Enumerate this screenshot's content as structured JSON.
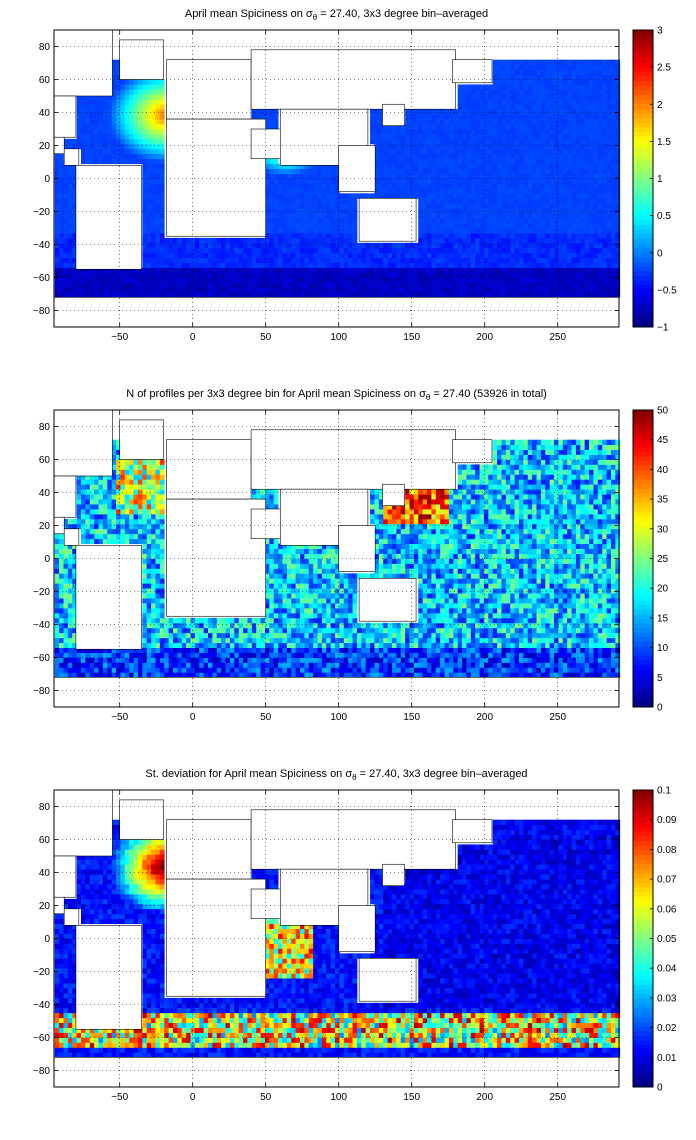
{
  "chart_data": [
    {
      "type": "heatmap",
      "title": "April mean Spiciness on σθ = 27.40, 3x3 degree bin–averaged",
      "title_parts": {
        "before": "April mean Spiciness on σ",
        "sub": "θ",
        "after": " = 27.40, 3x3 degree bin–averaged"
      },
      "xlim": [
        -95,
        292
      ],
      "ylim": [
        -90,
        90
      ],
      "xticks": [
        -50,
        0,
        50,
        100,
        150,
        200,
        250
      ],
      "xtick_labels": [
        "−50",
        "0",
        "50",
        "100",
        "150",
        "200",
        "250"
      ],
      "yticks": [
        80,
        60,
        40,
        20,
        0,
        -20,
        -40,
        -60,
        -80
      ],
      "ytick_labels": [
        "80",
        "60",
        "40",
        "20",
        "0",
        "−20",
        "−40",
        "−60",
        "−80"
      ],
      "grid": true,
      "colormap": "jet",
      "clim": [
        -1,
        3
      ],
      "colorbar_ticks": [
        3,
        2.5,
        2,
        1.5,
        1,
        0.5,
        0,
        -0.5,
        -1
      ],
      "colorbar_tick_labels": [
        "3",
        "2.5",
        "2",
        "1.5",
        "1",
        "0.5",
        "0",
        "−0.5",
        "−1"
      ]
    },
    {
      "type": "heatmap",
      "title": "N of profiles per 3x3 degree bin for April mean Spiciness on σθ = 27.40 (53926 in total)",
      "title_parts": {
        "before": "N of profiles per 3x3 degree bin for April mean Spiciness on σ",
        "sub": "θ",
        "after": " = 27.40 (53926 in total)"
      },
      "xlim": [
        -95,
        292
      ],
      "ylim": [
        -90,
        90
      ],
      "xticks": [
        -50,
        0,
        50,
        100,
        150,
        200,
        250
      ],
      "xtick_labels": [
        "−50",
        "0",
        "50",
        "100",
        "150",
        "200",
        "250"
      ],
      "yticks": [
        80,
        60,
        40,
        20,
        0,
        -20,
        -40,
        -60,
        -80
      ],
      "ytick_labels": [
        "80",
        "60",
        "40",
        "20",
        "0",
        "−20",
        "−40",
        "−60",
        "−80"
      ],
      "grid": true,
      "colormap": "jet",
      "clim": [
        0,
        50
      ],
      "colorbar_ticks": [
        50,
        45,
        40,
        35,
        30,
        25,
        20,
        15,
        10,
        5,
        0
      ],
      "colorbar_tick_labels": [
        "50",
        "45",
        "40",
        "35",
        "30",
        "25",
        "20",
        "15",
        "10",
        "5",
        "0"
      ]
    },
    {
      "type": "heatmap",
      "title": "St. deviation for April mean Spiciness on σθ = 27.40, 3x3 degree bin–averaged",
      "title_parts": {
        "before": "St. deviation for April mean Spiciness on σ",
        "sub": "θ",
        "after": " = 27.40, 3x3 degree bin–averaged"
      },
      "xlim": [
        -95,
        292
      ],
      "ylim": [
        -90,
        90
      ],
      "xticks": [
        -50,
        0,
        50,
        100,
        150,
        200,
        250
      ],
      "xtick_labels": [
        "−50",
        "0",
        "50",
        "100",
        "150",
        "200",
        "250"
      ],
      "yticks": [
        80,
        60,
        40,
        20,
        0,
        -20,
        -40,
        -60,
        -80
      ],
      "ytick_labels": [
        "80",
        "60",
        "40",
        "20",
        "0",
        "−20",
        "−40",
        "−60",
        "−80"
      ],
      "grid": true,
      "colormap": "jet",
      "clim": [
        0,
        0.1
      ],
      "colorbar_ticks": [
        0.1,
        0.09,
        0.08,
        0.07,
        0.06,
        0.05,
        0.04,
        0.03,
        0.02,
        0.01,
        0
      ],
      "colorbar_tick_labels": [
        "0.1",
        "0.09",
        "0.08",
        "0.07",
        "0.06",
        "0.05",
        "0.04",
        "0.03",
        "0.02",
        "0.01",
        "0"
      ]
    }
  ]
}
